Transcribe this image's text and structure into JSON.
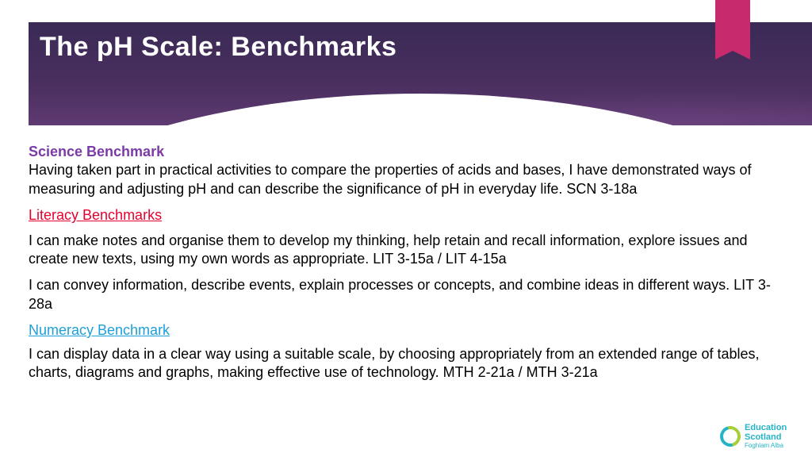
{
  "slide": {
    "title": "The pH Scale:  Benchmarks",
    "headings": {
      "science": "Science Benchmark",
      "literacy": "Literacy Benchmarks",
      "numeracy": "Numeracy Benchmark"
    },
    "science_text": "Having taken part in practical activities to compare the properties of acids and bases, I have demonstrated ways of measuring and adjusting pH and can describe the significance of pH in everyday life. SCN 3-18a",
    "lit_text_1": "I can make notes and organise them to develop my thinking, help retain and recall information, explore issues and create new texts, using my own words as appropriate. LIT 3-15a / LIT 4-15a",
    "lit_text_2": "I can convey information, describe events, explain processes or concepts, and combine ideas in different ways. LIT 3-28a",
    "num_text": "I can display data in a clear way using a suitable scale, by choosing appropriately from an extended range of tables, charts, diagrams and graphs, making effective use of technology. MTH 2-21a / MTH 3-21a"
  },
  "logo": {
    "line1": "Education",
    "line2": "Scotland",
    "sub": "Foghlam Alba"
  },
  "colors": {
    "header_gradient_top": "#3a2a55",
    "header_gradient_bottom": "#5e3a72",
    "ribbon": "#c82a6e",
    "science_heading": "#7b3aa6",
    "literacy_heading": "#e6002e",
    "numeracy_heading": "#1d9fd8",
    "body_text": "#000000",
    "logo_teal": "#25b4c7",
    "logo_green": "#a6ce39",
    "background": "#ffffff"
  },
  "typography": {
    "title_fontsize_pt": 26,
    "body_fontsize_pt": 14,
    "font_family": "Comic Sans MS"
  }
}
